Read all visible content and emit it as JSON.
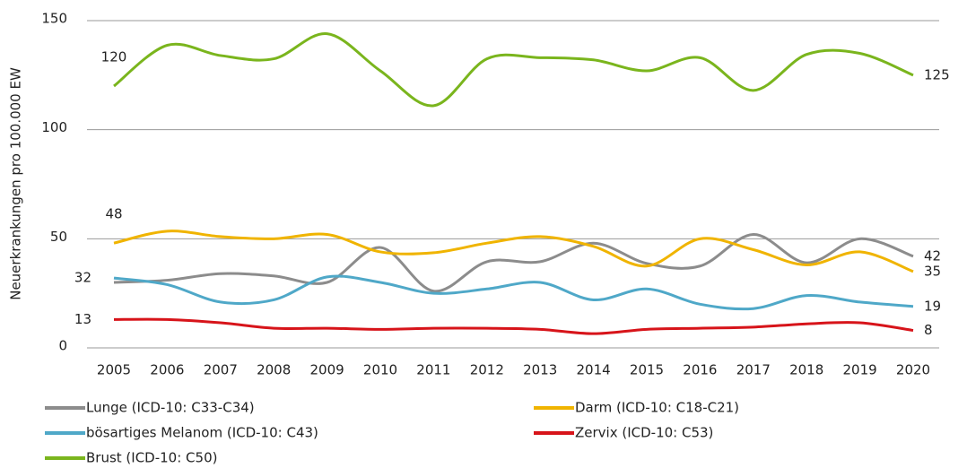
{
  "chart_data": {
    "type": "line",
    "y_label": "Neuerkrankungen pro 100.000 EW",
    "categories": [
      "2005",
      "2006",
      "2007",
      "2008",
      "2009",
      "2010",
      "2011",
      "2012",
      "2013",
      "2014",
      "2015",
      "2016",
      "2017",
      "2018",
      "2019",
      "2020"
    ],
    "ylim": [
      0,
      150
    ],
    "yticks": [
      0,
      50,
      100,
      150
    ],
    "grid": true,
    "series": [
      {
        "name": "Lunge (ICD-10: C33-C34)",
        "color": "#8c8c8c",
        "values": [
          30,
          31,
          34,
          33,
          30,
          46,
          26,
          39.5,
          39.5,
          48,
          38.7,
          37.5,
          52,
          39,
          50,
          42
        ],
        "value_labels": [
          null,
          null,
          null,
          null,
          null,
          null,
          null,
          null,
          null,
          null,
          null,
          null,
          null,
          null,
          null,
          42
        ]
      },
      {
        "name": "Darm (ICD-10: C18-C21)",
        "color": "#f0b400",
        "values": [
          48,
          53.5,
          51,
          50,
          52,
          44,
          43.6,
          48,
          51,
          46.5,
          37.5,
          50,
          45,
          38,
          44,
          35
        ],
        "value_labels": [
          48,
          null,
          null,
          null,
          null,
          null,
          null,
          null,
          null,
          null,
          null,
          null,
          null,
          null,
          null,
          35
        ]
      },
      {
        "name": "bösartiges Melanom (ICD-10: C43)",
        "color": "#4fa8c8",
        "values": [
          32,
          29,
          21,
          22,
          32.5,
          30,
          25,
          27,
          30,
          22,
          27,
          20,
          18,
          24,
          21,
          19
        ],
        "value_labels": [
          32,
          null,
          null,
          null,
          null,
          null,
          null,
          null,
          null,
          null,
          null,
          null,
          null,
          null,
          null,
          19
        ]
      },
      {
        "name": "Zervix (ICD-10: C53)",
        "color": "#d7141a",
        "values": [
          13,
          13,
          11.5,
          9,
          9,
          8.5,
          9,
          9,
          8.5,
          6.5,
          8.5,
          9,
          9.5,
          11,
          11.5,
          8
        ],
        "value_labels": [
          13,
          null,
          null,
          null,
          null,
          null,
          null,
          null,
          null,
          null,
          null,
          null,
          null,
          null,
          null,
          8
        ]
      },
      {
        "name": "Brust (ICD-10: C50)",
        "color": "#7ab51d",
        "values": [
          120,
          138.7,
          134,
          132.5,
          144,
          127,
          111,
          132.5,
          133,
          132,
          127,
          133,
          118,
          134.5,
          135,
          125
        ],
        "value_labels": [
          120,
          null,
          null,
          null,
          null,
          null,
          null,
          null,
          null,
          null,
          null,
          null,
          null,
          null,
          null,
          125
        ]
      }
    ]
  }
}
